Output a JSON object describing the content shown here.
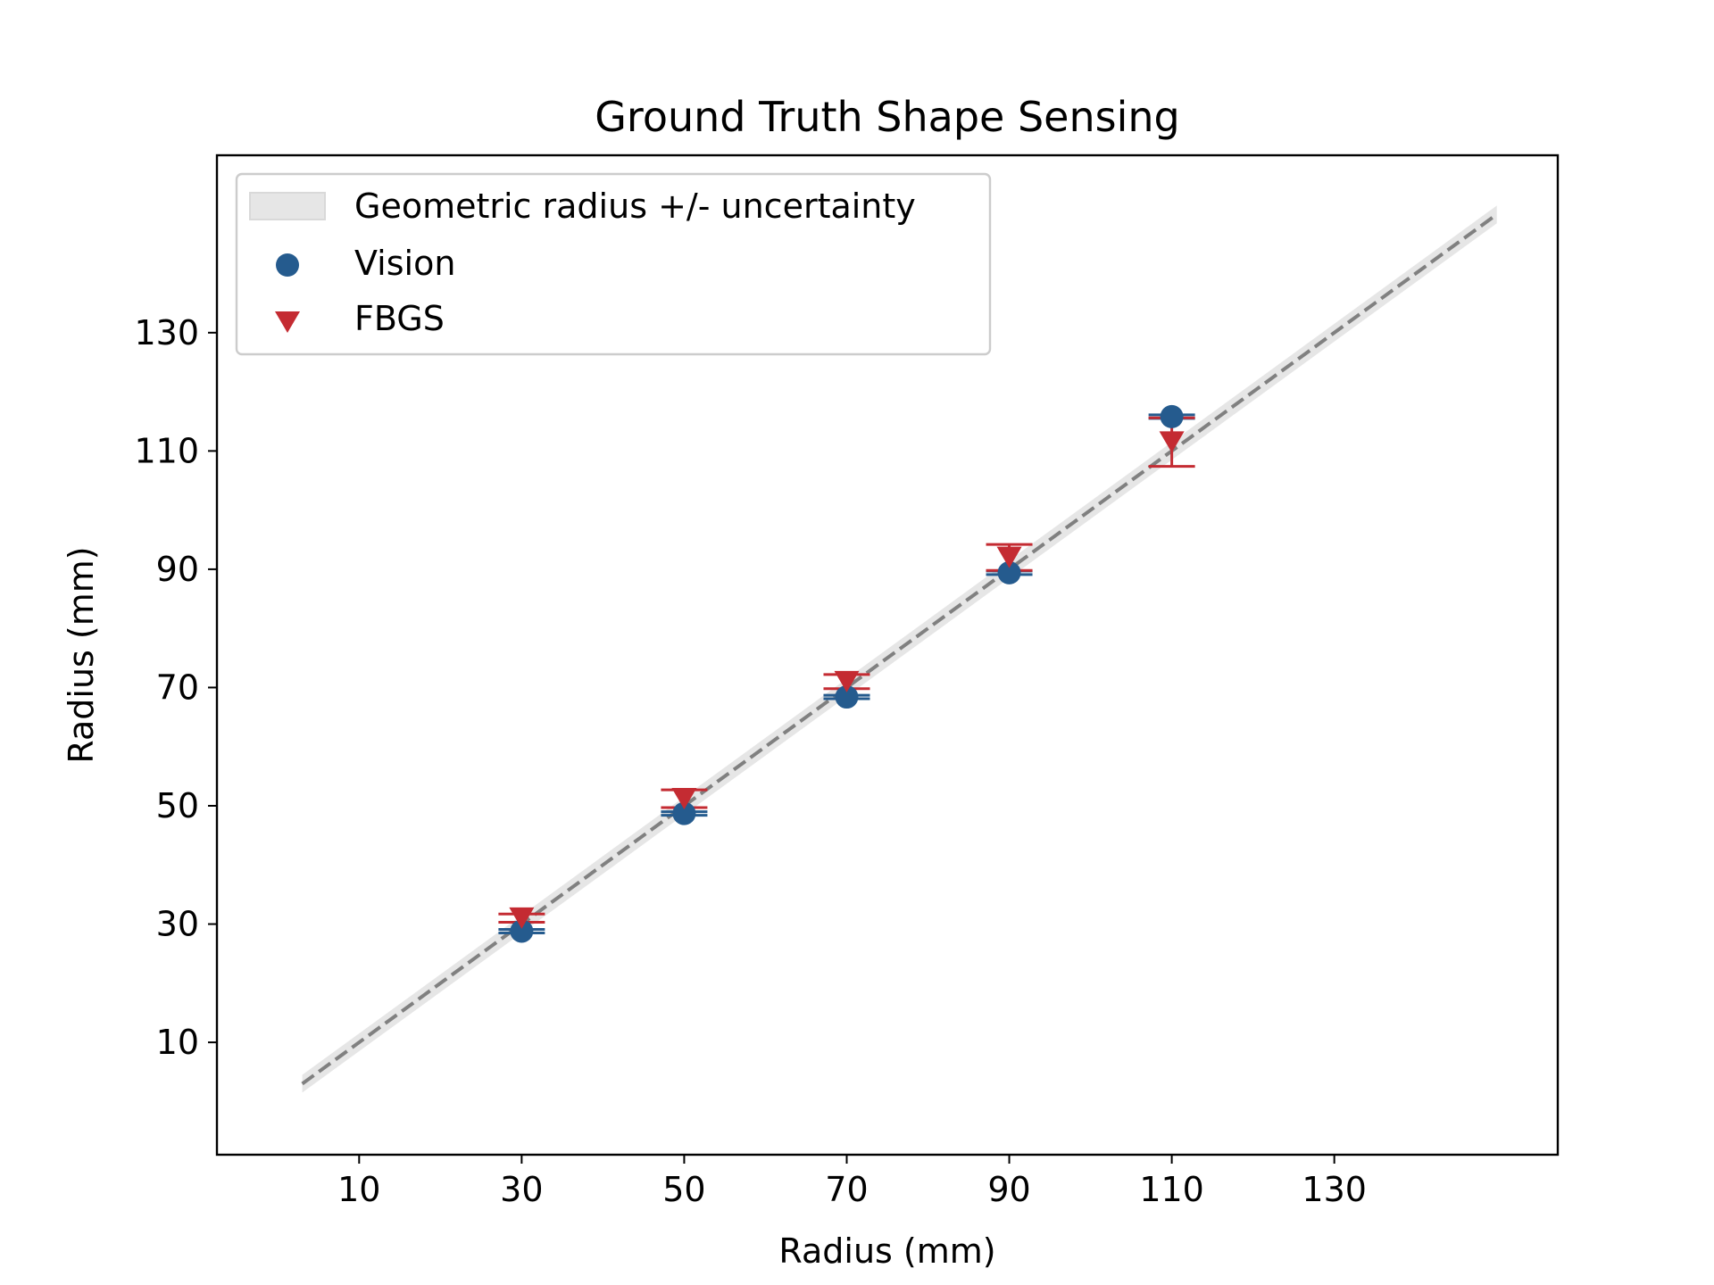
{
  "chart_data": {
    "type": "scatter",
    "title": "Ground Truth Shape Sensing",
    "xlabel": "Radius (mm)",
    "ylabel": "Radius (mm)",
    "xlim": [
      -7.5,
      157.5
    ],
    "ylim": [
      -9,
      160
    ],
    "xticks": [
      10,
      30,
      50,
      70,
      90,
      110,
      130
    ],
    "yticks": [
      10,
      30,
      50,
      70,
      90,
      110,
      130
    ],
    "grid": false,
    "legend_position": "top-left",
    "reference": {
      "name": "Geometric radius +/- uncertainty",
      "x": [
        3,
        150
      ],
      "y": [
        3,
        150
      ],
      "uncertainty": 1.5,
      "line_color": "#808080",
      "band_color": "#e6e6e6",
      "line_style": "dashed"
    },
    "series": [
      {
        "name": "Vision",
        "marker": "circle",
        "color": "#255b8e",
        "x": [
          30,
          50,
          70,
          90,
          110
        ],
        "y": [
          28.8,
          48.7,
          68.4,
          89.4,
          115.8
        ],
        "yerr": [
          0.3,
          0.3,
          0.3,
          0.3,
          0.3
        ]
      },
      {
        "name": "FBGS",
        "marker": "triangle-down",
        "color": "#c42b32",
        "x": [
          30,
          50,
          70,
          90,
          110
        ],
        "y": [
          31,
          51.2,
          71,
          92,
          111.5
        ],
        "yerr": [
          0.7,
          1.5,
          1.2,
          2.2,
          4.1
        ]
      }
    ]
  }
}
